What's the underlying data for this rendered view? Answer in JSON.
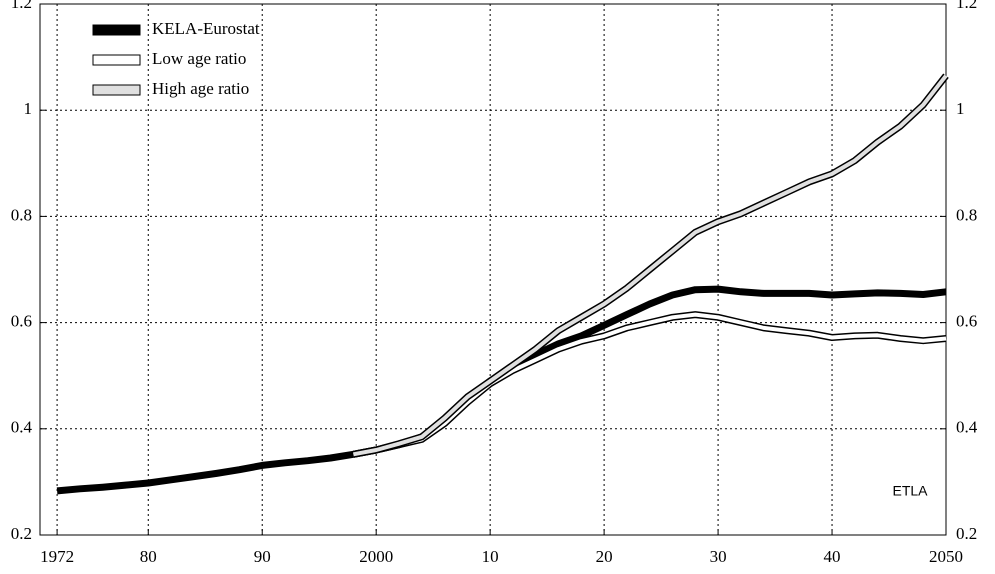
{
  "chart_data": {
    "type": "line",
    "x": [
      1972,
      1974,
      1976,
      1978,
      1980,
      1982,
      1984,
      1986,
      1988,
      1990,
      1992,
      1994,
      1996,
      1998,
      2000,
      2002,
      2004,
      2006,
      2008,
      2010,
      2012,
      2014,
      2016,
      2018,
      2020,
      2022,
      2024,
      2026,
      2028,
      2030,
      2032,
      2034,
      2036,
      2038,
      2040,
      2042,
      2044,
      2046,
      2048,
      2050
    ],
    "series": [
      {
        "name": "KELA-Eurostat",
        "color": "#000000",
        "values": [
          0.283,
          0.287,
          0.29,
          0.294,
          0.298,
          0.304,
          0.31,
          0.316,
          0.323,
          0.331,
          0.336,
          0.34,
          0.345,
          0.352,
          0.36,
          0.37,
          0.385,
          0.415,
          0.455,
          0.49,
          0.515,
          0.54,
          0.56,
          0.575,
          0.595,
          0.615,
          0.635,
          0.652,
          0.662,
          0.663,
          0.658,
          0.655,
          0.655,
          0.655,
          0.652,
          0.654,
          0.656,
          0.655,
          0.653,
          0.658
        ]
      },
      {
        "name": "Low age ratio",
        "color": "#ffffff",
        "values": [
          null,
          null,
          null,
          null,
          null,
          null,
          null,
          null,
          null,
          null,
          null,
          null,
          null,
          0.352,
          0.36,
          0.37,
          0.38,
          0.41,
          0.45,
          0.485,
          0.51,
          0.53,
          0.55,
          0.565,
          0.575,
          0.59,
          0.6,
          0.61,
          0.615,
          0.61,
          0.6,
          0.59,
          0.585,
          0.58,
          0.572,
          0.575,
          0.576,
          0.57,
          0.566,
          0.57
        ]
      },
      {
        "name": "High age ratio",
        "color": "#e0e0e0",
        "values": [
          null,
          null,
          null,
          null,
          null,
          null,
          null,
          null,
          null,
          null,
          null,
          null,
          null,
          0.352,
          0.36,
          0.372,
          0.385,
          0.42,
          0.46,
          0.49,
          0.52,
          0.55,
          0.585,
          0.61,
          0.635,
          0.665,
          0.7,
          0.735,
          0.77,
          0.79,
          0.805,
          0.825,
          0.845,
          0.865,
          0.88,
          0.905,
          0.94,
          0.97,
          1.01,
          1.065
        ]
      }
    ],
    "xlim": [
      1970.5,
      2050
    ],
    "xticks": [
      {
        "value": 1972,
        "label": "1972"
      },
      {
        "value": 1980,
        "label": "80"
      },
      {
        "value": 1990,
        "label": "90"
      },
      2000,
      {
        "value": 2010,
        "label": "10"
      },
      {
        "value": 2020,
        "label": "20"
      },
      {
        "value": 2030,
        "label": "30"
      },
      {
        "value": 2040,
        "label": "40"
      },
      2050
    ],
    "ylim": [
      0.2,
      1.2
    ],
    "yticks": [
      0.2,
      0.4,
      0.6,
      0.8,
      1,
      1.2
    ],
    "grid": true,
    "legend": "upper left",
    "annotation": "ETLA"
  }
}
